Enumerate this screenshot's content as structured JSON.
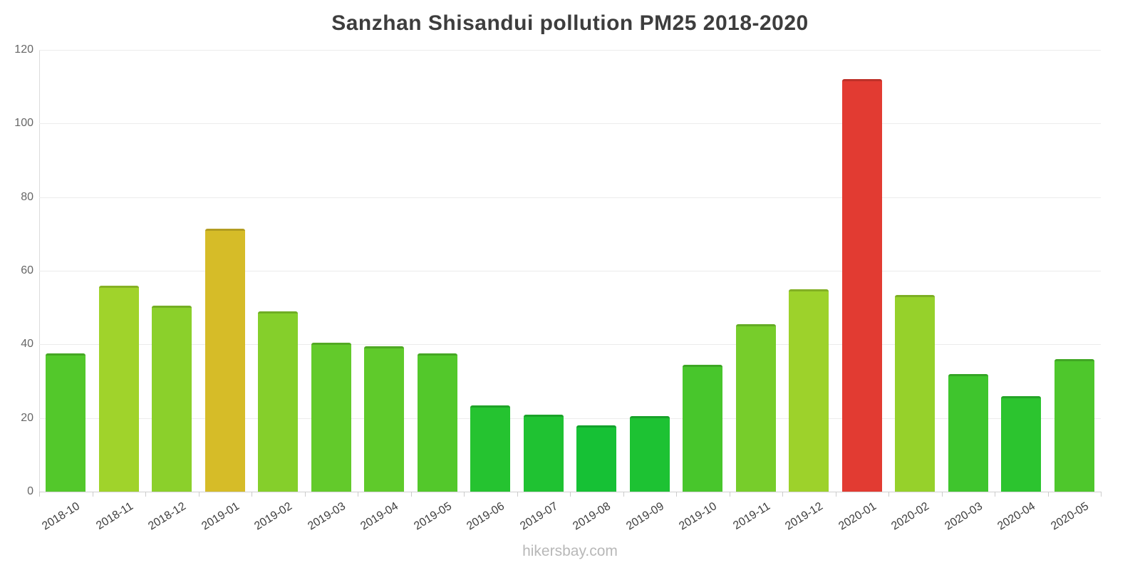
{
  "page": {
    "title": "Sanzhan Shisandui pollution PM25 2018-2020",
    "footer": "hikersbay.com"
  },
  "chart_data": {
    "type": "bar",
    "title": "Sanzhan Shisandui pollution PM25 2018-2020",
    "categories": [
      "2018-10",
      "2018-11",
      "2018-12",
      "2019-01",
      "2019-02",
      "2019-03",
      "2019-04",
      "2019-05",
      "2019-06",
      "2019-07",
      "2019-08",
      "2019-09",
      "2019-10",
      "2019-11",
      "2019-12",
      "2020-01",
      "2020-02",
      "2020-03",
      "2020-04",
      "2020-05"
    ],
    "values": [
      37.5,
      56,
      50.5,
      71.5,
      49,
      40.5,
      39.5,
      37.5,
      23.5,
      21,
      18,
      20.5,
      34.5,
      45.5,
      55,
      112,
      53.5,
      32,
      26,
      36
    ],
    "bar_colors": [
      "#53c82b",
      "#a0d32b",
      "#8bd02b",
      "#d6bc28",
      "#85cf2b",
      "#63ca2b",
      "#5fca2b",
      "#53c82b",
      "#25c330",
      "#1fc232",
      "#16c135",
      "#1dc233",
      "#48c62c",
      "#77cd2b",
      "#9dd22b",
      "#e23b32",
      "#96d12b",
      "#3fc52d",
      "#2cc42f",
      "#4ec72c"
    ],
    "xlabel": "",
    "ylabel": "",
    "ylim": [
      0,
      120
    ],
    "yticks": [
      0,
      20,
      40,
      60,
      80,
      100,
      120
    ],
    "grid": true,
    "legend": false
  }
}
